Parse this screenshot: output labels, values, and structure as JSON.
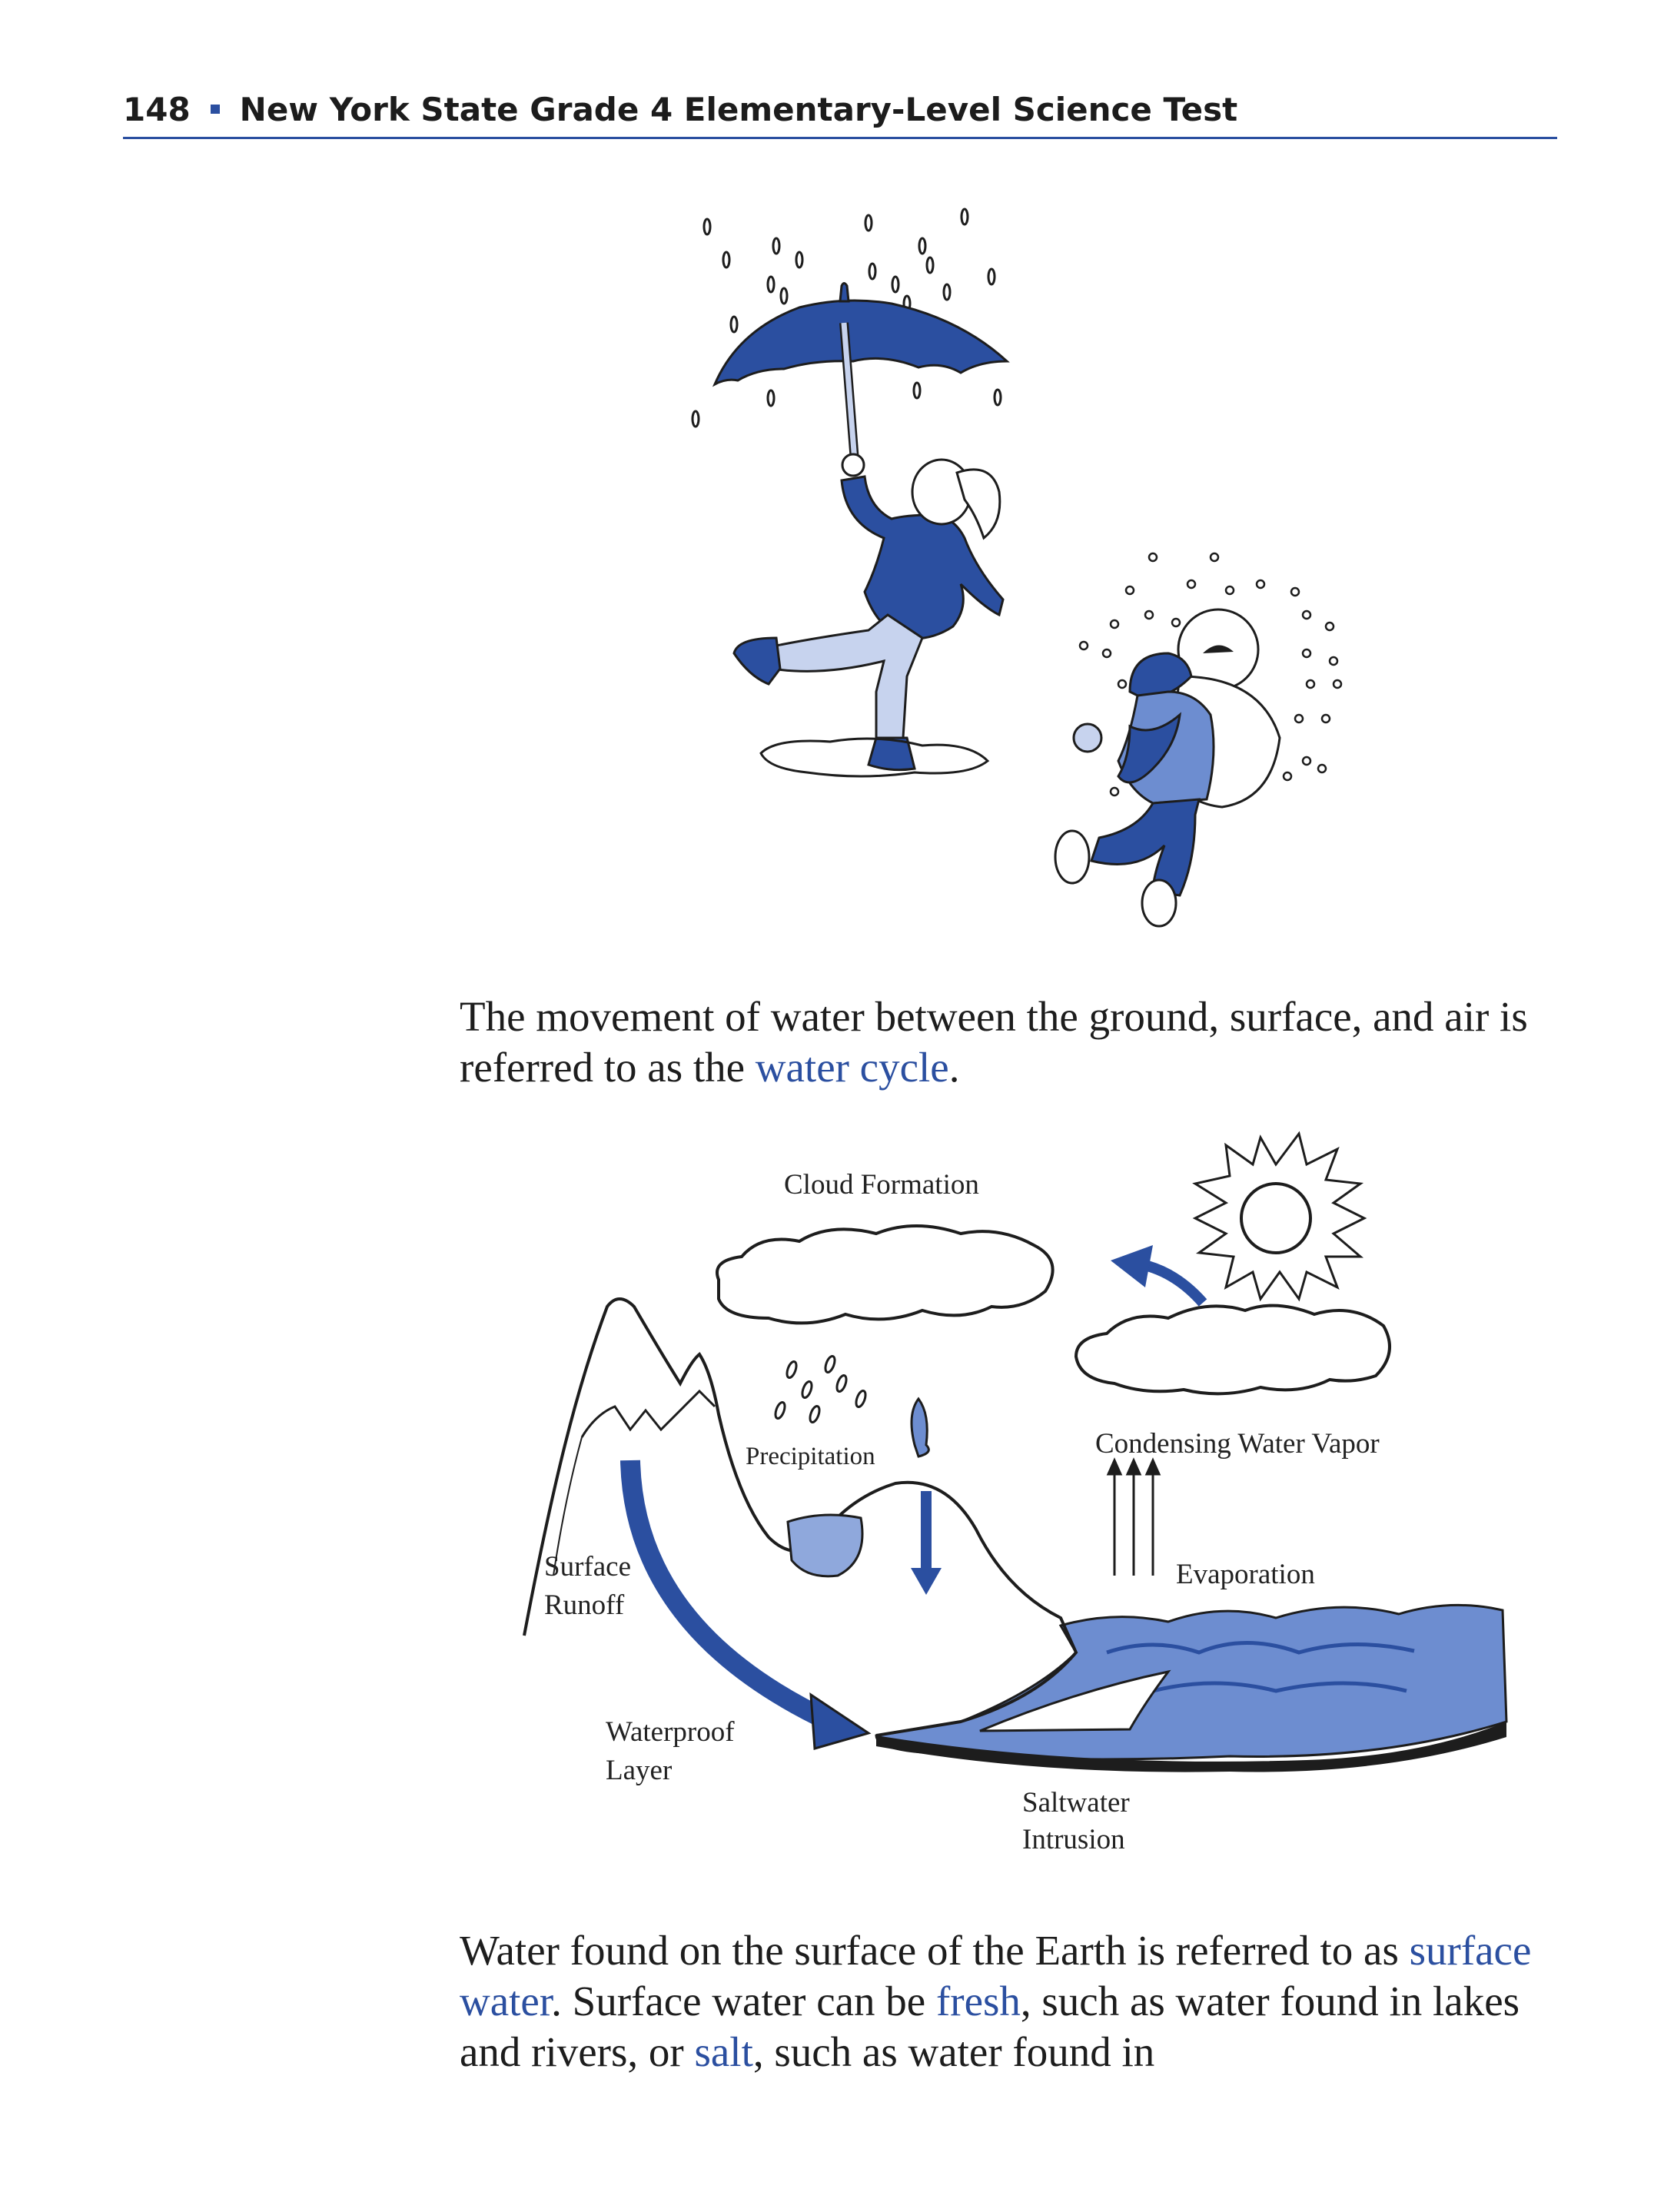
{
  "header": {
    "page_number": "148",
    "title": "New York State Grade 4 Elementary-Level Science Test"
  },
  "paragraph1": {
    "before": "The movement of water between the ground, surface, and air is referred to as the ",
    "term": "water cycle",
    "after": "."
  },
  "diagram": {
    "labels": {
      "cloud_formation": "Cloud Formation",
      "precipitation": "Precipitation",
      "condensing_water_vapor": "Condensing Water Vapor",
      "evaporation": "Evaporation",
      "surface_runoff_line1": "Surface",
      "surface_runoff_line2": "Runoff",
      "waterproof_layer_line1": "Waterproof",
      "waterproof_layer_line2": "Layer",
      "saltwater_intrusion_line1": "Saltwater",
      "saltwater_intrusion_line2": "Intrusion"
    }
  },
  "paragraph2": {
    "part1": "Water found on the surface of the Earth is referred to as ",
    "term1": "surface water",
    "part2": ". Surface water can be ",
    "term2": "fresh",
    "part3": ", such as water found in lakes and rivers, or ",
    "term3": "salt",
    "part4": ", such as water found in"
  },
  "colors": {
    "accent_blue": "#2b4fa0",
    "ink": "#1d1d1d",
    "light_blue": "#8fa8dc",
    "mid_blue": "#6d8dd0"
  }
}
